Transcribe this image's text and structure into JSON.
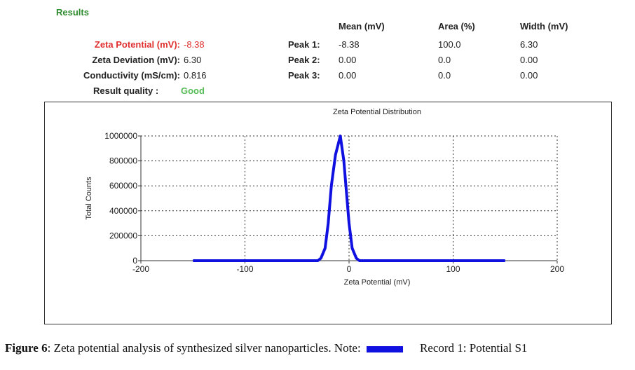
{
  "results": {
    "title": "Results",
    "zeta_potential_label": "Zeta Potential (mV):",
    "zeta_potential_value": "-8.38",
    "zeta_deviation_label": "Zeta Deviation (mV):",
    "zeta_deviation_value": "6.30",
    "conductivity_label": "Conductivity (mS/cm):",
    "conductivity_value": "0.816",
    "quality_label": "Result quality :",
    "quality_value": "Good",
    "headers": [
      "Mean (mV)",
      "Area (%)",
      "Width (mV)"
    ],
    "peaks": [
      {
        "label": "Peak 1:",
        "mean": "-8.38",
        "area": "100.0",
        "width": "6.30"
      },
      {
        "label": "Peak 2:",
        "mean": "0.00",
        "area": "0.0",
        "width": "0.00"
      },
      {
        "label": "Peak 3:",
        "mean": "0.00",
        "area": "0.0",
        "width": "0.00"
      }
    ]
  },
  "colors": {
    "accent_green": "#2e8b2e",
    "red": "#e03030",
    "line": "#1010e0",
    "good": "#55bb55"
  },
  "chart_data": {
    "type": "line",
    "title": "Zeta Potential Distribution",
    "xlabel": "Zeta Potential (mV)",
    "ylabel": "Total Counts",
    "xlim": [
      -200,
      200
    ],
    "ylim": [
      0,
      1000000
    ],
    "xticks": [
      "-200",
      "-100",
      "0",
      "100",
      "200"
    ],
    "yticks": [
      "0",
      "200000",
      "400000",
      "600000",
      "800000",
      "1000000"
    ],
    "grid": true,
    "series": [
      {
        "name": "Record 1: Potential S1",
        "x": [
          -150,
          -30,
          -27,
          -23,
          -20,
          -17,
          -13,
          -8.38,
          -5,
          -2,
          0,
          3,
          7,
          10,
          150
        ],
        "y": [
          0,
          0,
          20000,
          100000,
          300000,
          600000,
          850000,
          1000000,
          800000,
          500000,
          300000,
          100000,
          20000,
          0,
          0
        ]
      }
    ]
  },
  "caption": {
    "figure_label": "Figure 6",
    "text": ":  Zeta potential analysis of synthesized silver nanoparticles. Note:",
    "legend_text": "Record 1: Potential S1"
  }
}
